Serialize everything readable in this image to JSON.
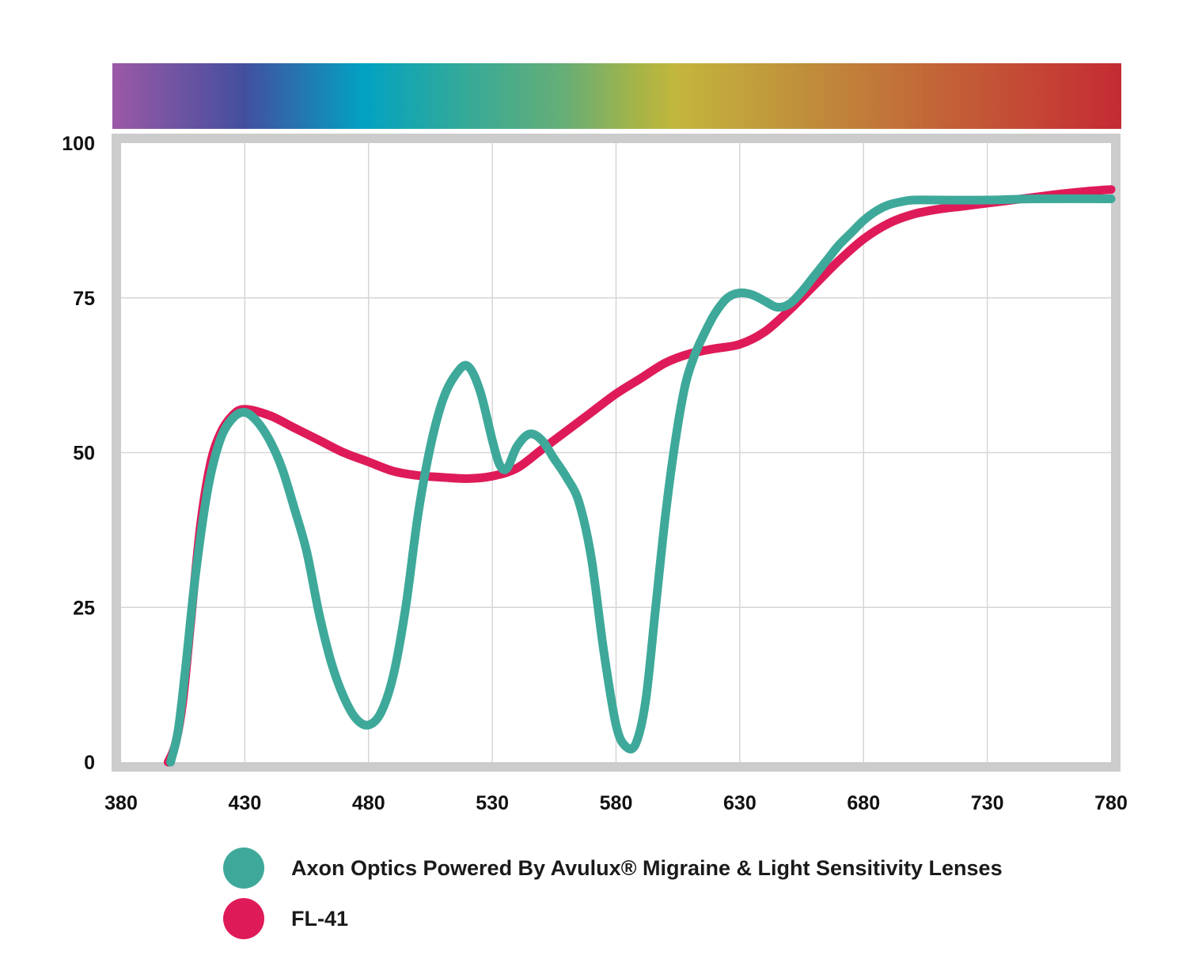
{
  "chart_data": {
    "type": "line",
    "x_ticks": [
      "380",
      "430",
      "480",
      "530",
      "580",
      "630",
      "680",
      "730",
      "780"
    ],
    "y_ticks": [
      "0",
      "25",
      "50",
      "75",
      "100"
    ],
    "xlim": [
      380,
      780
    ],
    "ylim": [
      0,
      100
    ],
    "grid": true,
    "spectrum_bar": true,
    "legend_position": "bottom",
    "series": [
      {
        "name": "Axon Optics Powered By Avulux® Migraine & Light Sensitivity Lenses",
        "color": "#3ea99a",
        "points": [
          [
            400,
            0
          ],
          [
            403,
            5
          ],
          [
            406,
            15
          ],
          [
            410,
            30
          ],
          [
            415,
            44
          ],
          [
            420,
            52
          ],
          [
            425,
            55.5
          ],
          [
            430,
            56.5
          ],
          [
            435,
            55
          ],
          [
            440,
            52
          ],
          [
            445,
            47.5
          ],
          [
            450,
            41
          ],
          [
            455,
            34
          ],
          [
            460,
            24
          ],
          [
            465,
            16
          ],
          [
            470,
            10.5
          ],
          [
            475,
            7
          ],
          [
            480,
            6
          ],
          [
            485,
            8
          ],
          [
            490,
            14
          ],
          [
            495,
            25
          ],
          [
            500,
            40
          ],
          [
            505,
            51
          ],
          [
            510,
            58.5
          ],
          [
            515,
            62.5
          ],
          [
            520,
            64
          ],
          [
            525,
            60
          ],
          [
            530,
            52
          ],
          [
            533,
            48
          ],
          [
            536,
            47.5
          ],
          [
            540,
            51
          ],
          [
            545,
            53
          ],
          [
            550,
            52
          ],
          [
            555,
            49
          ],
          [
            560,
            46
          ],
          [
            565,
            42
          ],
          [
            570,
            33
          ],
          [
            575,
            18
          ],
          [
            580,
            6
          ],
          [
            584,
            2.5
          ],
          [
            588,
            3
          ],
          [
            592,
            10
          ],
          [
            596,
            25
          ],
          [
            600,
            40
          ],
          [
            604,
            52
          ],
          [
            608,
            61
          ],
          [
            612,
            66
          ],
          [
            616,
            69.5
          ],
          [
            620,
            72.5
          ],
          [
            625,
            75
          ],
          [
            630,
            75.8
          ],
          [
            635,
            75.5
          ],
          [
            640,
            74.5
          ],
          [
            645,
            73.5
          ],
          [
            650,
            74
          ],
          [
            655,
            76
          ],
          [
            660,
            78.5
          ],
          [
            665,
            81
          ],
          [
            670,
            83.5
          ],
          [
            675,
            85.5
          ],
          [
            680,
            87.5
          ],
          [
            685,
            89
          ],
          [
            690,
            90
          ],
          [
            695,
            90.5
          ],
          [
            700,
            90.8
          ],
          [
            710,
            90.8
          ],
          [
            730,
            90.8
          ],
          [
            750,
            91
          ],
          [
            780,
            91
          ]
        ]
      },
      {
        "name": "FL-41",
        "color": "#de1b58",
        "points": [
          [
            399,
            0
          ],
          [
            402,
            3
          ],
          [
            405,
            10
          ],
          [
            408,
            22
          ],
          [
            412,
            38
          ],
          [
            416,
            48
          ],
          [
            420,
            53
          ],
          [
            425,
            56
          ],
          [
            430,
            57
          ],
          [
            440,
            56
          ],
          [
            450,
            54
          ],
          [
            460,
            52
          ],
          [
            470,
            50
          ],
          [
            480,
            48.5
          ],
          [
            490,
            47
          ],
          [
            500,
            46.3
          ],
          [
            510,
            46
          ],
          [
            520,
            45.8
          ],
          [
            530,
            46.2
          ],
          [
            540,
            47.5
          ],
          [
            550,
            50.5
          ],
          [
            560,
            53.5
          ],
          [
            570,
            56.5
          ],
          [
            580,
            59.5
          ],
          [
            590,
            62
          ],
          [
            600,
            64.5
          ],
          [
            610,
            66
          ],
          [
            620,
            66.8
          ],
          [
            630,
            67.5
          ],
          [
            640,
            69.5
          ],
          [
            650,
            73
          ],
          [
            660,
            77
          ],
          [
            670,
            81
          ],
          [
            680,
            84.5
          ],
          [
            690,
            87
          ],
          [
            700,
            88.5
          ],
          [
            710,
            89.3
          ],
          [
            720,
            89.8
          ],
          [
            730,
            90.3
          ],
          [
            740,
            90.8
          ],
          [
            750,
            91.3
          ],
          [
            760,
            91.8
          ],
          [
            770,
            92.2
          ],
          [
            780,
            92.5
          ]
        ]
      }
    ]
  }
}
